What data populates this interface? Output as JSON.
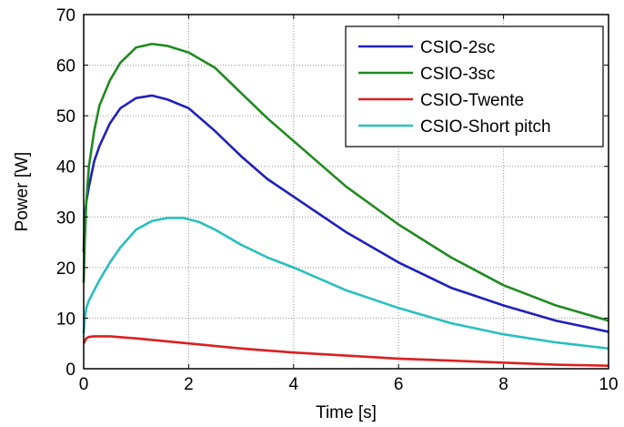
{
  "chart_data": {
    "type": "line",
    "title": "",
    "xlabel": "Time [s]",
    "ylabel": "Power [W]",
    "xlim": [
      0,
      10
    ],
    "ylim": [
      0,
      70
    ],
    "xticks": [
      0,
      2,
      4,
      6,
      8,
      10
    ],
    "yticks": [
      0,
      10,
      20,
      30,
      40,
      50,
      60,
      70
    ],
    "grid": true,
    "legend_position": "top-right",
    "series": [
      {
        "name": "CSIO-2sc",
        "color": "#1f1fbf",
        "x": [
          0,
          0.02,
          0.05,
          0.1,
          0.2,
          0.3,
          0.5,
          0.7,
          1.0,
          1.3,
          1.6,
          2.0,
          2.5,
          3.0,
          3.5,
          4.0,
          5.0,
          6.0,
          7.0,
          8.0,
          9.0,
          10.0
        ],
        "y": [
          23,
          30,
          33,
          36,
          41,
          44,
          48.5,
          51.5,
          53.5,
          54,
          53.2,
          51.5,
          47,
          42,
          37.5,
          34,
          27,
          21,
          16,
          12.5,
          9.5,
          7.3
        ]
      },
      {
        "name": "CSIO-3sc",
        "color": "#1f8a1f",
        "x": [
          0,
          0.02,
          0.05,
          0.1,
          0.2,
          0.3,
          0.5,
          0.7,
          1.0,
          1.3,
          1.6,
          2.0,
          2.5,
          3.0,
          3.5,
          4.0,
          5.0,
          6.0,
          7.0,
          8.0,
          9.0,
          10.0
        ],
        "y": [
          17,
          25,
          33,
          40,
          47,
          52,
          57,
          60.5,
          63.5,
          64.2,
          63.8,
          62.5,
          59.5,
          54.5,
          49.5,
          45,
          36,
          28.5,
          22,
          16.5,
          12.5,
          9.5
        ]
      },
      {
        "name": "CSIO-Twente",
        "color": "#dd1f1f",
        "x": [
          0,
          0.05,
          0.1,
          0.2,
          0.5,
          1.0,
          1.5,
          2.0,
          3.0,
          4.0,
          5.0,
          6.0,
          7.0,
          8.0,
          9.0,
          10.0
        ],
        "y": [
          5,
          6,
          6.3,
          6.4,
          6.4,
          6,
          5.5,
          5,
          4,
          3.2,
          2.6,
          2,
          1.6,
          1.2,
          0.8,
          0.6
        ]
      },
      {
        "name": "CSIO-Short pitch",
        "color": "#29bfbf",
        "x": [
          0,
          0.02,
          0.05,
          0.1,
          0.2,
          0.3,
          0.5,
          0.7,
          1.0,
          1.3,
          1.6,
          1.9,
          2.2,
          2.5,
          3.0,
          3.5,
          4.0,
          5.0,
          6.0,
          7.0,
          8.0,
          9.0,
          10.0
        ],
        "y": [
          7,
          10,
          12,
          13.5,
          15.5,
          17.5,
          21,
          24,
          27.5,
          29.2,
          29.8,
          29.8,
          29,
          27.5,
          24.5,
          22,
          20,
          15.5,
          12,
          9,
          6.8,
          5.2,
          4
        ]
      }
    ]
  }
}
